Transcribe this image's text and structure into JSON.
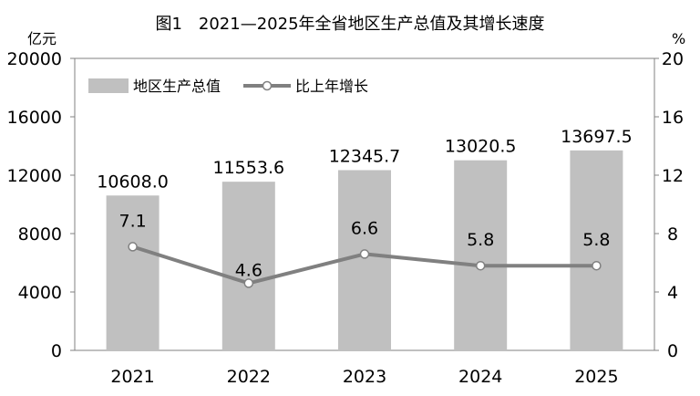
{
  "chart_data": {
    "type": "bar",
    "title": "图1　2021—2025年全省地区生产总值及其增长速度",
    "categories": [
      "2021",
      "2022",
      "2023",
      "2024",
      "2025"
    ],
    "y_left": {
      "unit": "亿元",
      "ylim": [
        0,
        20000
      ],
      "ticks": [
        "0",
        "4000",
        "8000",
        "12000",
        "16000",
        "20000"
      ]
    },
    "y_right": {
      "unit": "%",
      "ylim": [
        0,
        20
      ],
      "ticks": [
        "0",
        "4",
        "8",
        "12",
        "16",
        "20"
      ]
    },
    "series": [
      {
        "name": "地区生产总值",
        "type": "bar",
        "axis": "left",
        "color": "#c0c0c0",
        "values": [
          10608.0,
          11553.6,
          12345.7,
          13020.5,
          13697.5
        ],
        "labels": [
          "10608.0",
          "11553.6",
          "12345.7",
          "13020.5",
          "13697.5"
        ]
      },
      {
        "name": "比上年增长",
        "type": "line",
        "axis": "right",
        "color": "#808080",
        "values": [
          7.1,
          4.6,
          6.6,
          5.8,
          5.8
        ],
        "labels": [
          "7.1",
          "4.6",
          "6.6",
          "5.8",
          "5.8"
        ]
      }
    ],
    "legend_position": "top-left",
    "grid": false
  }
}
